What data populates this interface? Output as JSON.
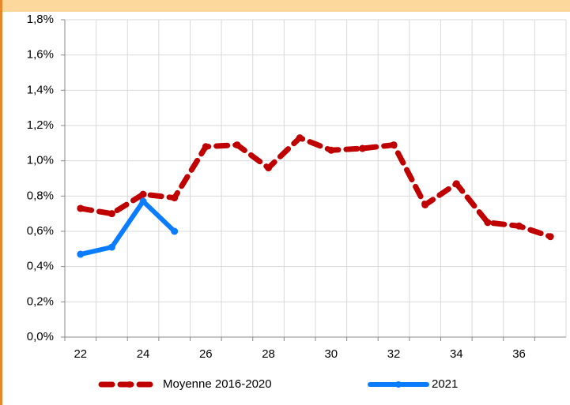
{
  "chart_data": {
    "type": "line",
    "categories": [
      "22",
      null,
      "24",
      null,
      "26",
      null,
      "28",
      null,
      "30",
      null,
      "32",
      null,
      "34",
      null,
      "36",
      null
    ],
    "series": [
      {
        "name": "Moyenne 2016-2020",
        "color": "#c00000",
        "dashed": true,
        "values": [
          0.73,
          0.7,
          0.81,
          0.79,
          1.08,
          1.09,
          0.96,
          1.13,
          1.06,
          1.07,
          1.09,
          0.75,
          0.87,
          0.65,
          0.63,
          0.57
        ]
      },
      {
        "name": "2021",
        "color": "#0a7cff",
        "dashed": false,
        "values": [
          0.47,
          0.51,
          0.77,
          0.6,
          null,
          null,
          null,
          null,
          null,
          null,
          null,
          null,
          null,
          null,
          null,
          null
        ]
      }
    ],
    "ylim": [
      0,
      1.8
    ],
    "yticks": [
      {
        "value": 0,
        "label": "0,0%"
      },
      {
        "value": 0.2,
        "label": "0,2%"
      },
      {
        "value": 0.4,
        "label": "0,4%"
      },
      {
        "value": 0.6,
        "label": "0,6%"
      },
      {
        "value": 0.8,
        "label": "0,8%"
      },
      {
        "value": 1.0,
        "label": "1,0%"
      },
      {
        "value": 1.2,
        "label": "1,2%"
      },
      {
        "value": 1.4,
        "label": "1,4%"
      },
      {
        "value": 1.6,
        "label": "1,6%"
      },
      {
        "value": 1.8,
        "label": "1,8%"
      }
    ],
    "grid": true,
    "legend": "bottom"
  }
}
